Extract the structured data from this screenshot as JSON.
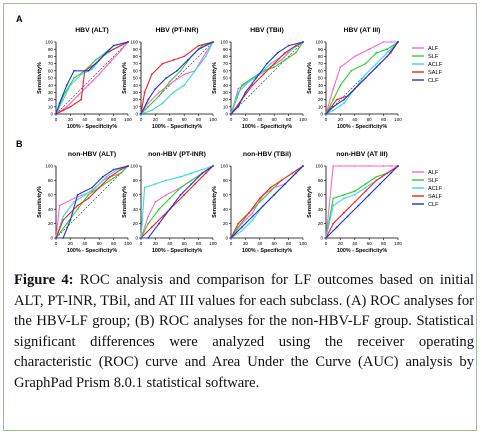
{
  "figure": {
    "panel_labels": [
      "A",
      "B"
    ],
    "legend_entries": [
      "ALF",
      "SLF",
      "ACLF",
      "SALF",
      "CLF"
    ],
    "colors": {
      "ALF": "#ff66cc",
      "SLF": "#33cc33",
      "ACLF": "#33dddd",
      "SALF": "#ee2222",
      "CLF": "#2233dd"
    }
  },
  "chart_data": [
    {
      "type": "line",
      "title": "HBV (ALT)",
      "xlabel": "100% - Specificity%",
      "ylabel": "Sensitivity%",
      "xlim": [
        0,
        100
      ],
      "ylim": [
        0,
        100
      ],
      "xticks": [
        "0",
        "20",
        "40",
        "60",
        "80",
        "100"
      ],
      "yticks": [
        "0",
        "10",
        "20",
        "30",
        "40",
        "50",
        "60",
        "70",
        "80",
        "90",
        "100"
      ],
      "series": [
        {
          "name": "ALF",
          "x": [
            0,
            15,
            30,
            45,
            60,
            75,
            90,
            100
          ],
          "y": [
            0,
            10,
            25,
            40,
            55,
            72,
            88,
            100
          ]
        },
        {
          "name": "SLF",
          "x": [
            0,
            10,
            25,
            40,
            55,
            65,
            80,
            100
          ],
          "y": [
            0,
            25,
            50,
            60,
            75,
            82,
            95,
            100
          ]
        },
        {
          "name": "ACLF",
          "x": [
            0,
            10,
            20,
            35,
            50,
            65,
            80,
            100
          ],
          "y": [
            0,
            20,
            40,
            55,
            62,
            80,
            90,
            100
          ]
        },
        {
          "name": "SALF",
          "x": [
            0,
            10,
            20,
            35,
            40,
            55,
            70,
            100
          ],
          "y": [
            0,
            5,
            10,
            20,
            60,
            70,
            85,
            100
          ]
        },
        {
          "name": "CLF",
          "x": [
            0,
            5,
            15,
            25,
            45,
            60,
            80,
            100
          ],
          "y": [
            0,
            15,
            40,
            60,
            60,
            75,
            95,
            100
          ]
        }
      ]
    },
    {
      "type": "line",
      "title": "HBV (PT-INR)",
      "xlabel": "100% - Specificity%",
      "ylabel": "Sensitivity%",
      "xlim": [
        0,
        100
      ],
      "ylim": [
        0,
        100
      ],
      "xticks": [
        "0",
        "20",
        "40",
        "60",
        "80",
        "100"
      ],
      "yticks": [
        "0",
        "10",
        "20",
        "30",
        "40",
        "50",
        "60",
        "70",
        "80",
        "90",
        "100"
      ],
      "series": [
        {
          "name": "ALF",
          "x": [
            0,
            10,
            25,
            45,
            60,
            75,
            90,
            100
          ],
          "y": [
            0,
            15,
            30,
            45,
            55,
            60,
            85,
            100
          ]
        },
        {
          "name": "SLF",
          "x": [
            0,
            10,
            25,
            40,
            55,
            70,
            85,
            100
          ],
          "y": [
            0,
            10,
            25,
            45,
            60,
            80,
            95,
            100
          ]
        },
        {
          "name": "ACLF",
          "x": [
            0,
            15,
            30,
            45,
            60,
            75,
            90,
            100
          ],
          "y": [
            0,
            5,
            15,
            30,
            40,
            60,
            80,
            100
          ]
        },
        {
          "name": "SALF",
          "x": [
            0,
            5,
            15,
            30,
            45,
            60,
            80,
            100
          ],
          "y": [
            0,
            30,
            55,
            70,
            75,
            80,
            95,
            100
          ]
        },
        {
          "name": "CLF",
          "x": [
            0,
            10,
            20,
            35,
            50,
            65,
            80,
            100
          ],
          "y": [
            0,
            20,
            35,
            50,
            60,
            75,
            90,
            100
          ]
        }
      ]
    },
    {
      "type": "line",
      "title": "HBV (TBil)",
      "xlabel": "100% - Specificity%",
      "ylabel": "Sensitivity%",
      "xlim": [
        0,
        100
      ],
      "ylim": [
        0,
        100
      ],
      "xticks": [
        "0",
        "20",
        "40",
        "60",
        "80",
        "100"
      ],
      "yticks": [
        "0",
        "10",
        "20",
        "30",
        "40",
        "50",
        "60",
        "70",
        "80",
        "90",
        "100"
      ],
      "series": [
        {
          "name": "ALF",
          "x": [
            0,
            10,
            25,
            40,
            55,
            70,
            85,
            100
          ],
          "y": [
            0,
            35,
            45,
            55,
            65,
            75,
            90,
            100
          ]
        },
        {
          "name": "SLF",
          "x": [
            0,
            15,
            30,
            45,
            60,
            75,
            90,
            100
          ],
          "y": [
            0,
            40,
            50,
            60,
            65,
            75,
            85,
            100
          ]
        },
        {
          "name": "ACLF",
          "x": [
            0,
            10,
            25,
            40,
            55,
            70,
            85,
            100
          ],
          "y": [
            0,
            30,
            45,
            55,
            70,
            80,
            90,
            100
          ]
        },
        {
          "name": "SALF",
          "x": [
            0,
            15,
            30,
            45,
            60,
            75,
            90,
            100
          ],
          "y": [
            0,
            20,
            40,
            55,
            70,
            85,
            95,
            100
          ]
        },
        {
          "name": "CLF",
          "x": [
            0,
            10,
            20,
            35,
            50,
            65,
            80,
            100
          ],
          "y": [
            0,
            10,
            30,
            50,
            70,
            85,
            95,
            100
          ]
        }
      ]
    },
    {
      "type": "line",
      "title": "HBV (AT III)",
      "xlabel": "100% - Specificity%",
      "ylabel": "Sensitivity%",
      "xlim": [
        0,
        100
      ],
      "ylim": [
        0,
        100
      ],
      "xticks": [
        "0",
        "20",
        "40",
        "60",
        "80",
        "100"
      ],
      "yticks": [
        "0",
        "10",
        "20",
        "30",
        "40",
        "50",
        "60",
        "70",
        "80",
        "90",
        "100"
      ],
      "series": [
        {
          "name": "ALF",
          "x": [
            0,
            10,
            20,
            40,
            60,
            80,
            90,
            100
          ],
          "y": [
            0,
            35,
            65,
            80,
            90,
            100,
            100,
            100
          ]
        },
        {
          "name": "SLF",
          "x": [
            0,
            10,
            20,
            35,
            55,
            70,
            85,
            100
          ],
          "y": [
            0,
            20,
            40,
            60,
            70,
            85,
            90,
            100
          ]
        },
        {
          "name": "ACLF",
          "x": [
            0,
            10,
            25,
            40,
            55,
            70,
            85,
            100
          ],
          "y": [
            0,
            5,
            15,
            35,
            55,
            70,
            85,
            100
          ]
        },
        {
          "name": "SALF",
          "x": [
            0,
            15,
            30,
            45,
            60,
            75,
            90,
            100
          ],
          "y": [
            0,
            20,
            25,
            40,
            55,
            70,
            85,
            100
          ]
        },
        {
          "name": "CLF",
          "x": [
            0,
            10,
            25,
            40,
            55,
            70,
            85,
            100
          ],
          "y": [
            0,
            10,
            20,
            35,
            50,
            65,
            80,
            100
          ]
        }
      ]
    },
    {
      "type": "line",
      "title": "non-HBV (ALT)",
      "xlabel": "100% - Specificity%",
      "ylabel": "Sensitivity%",
      "xlim": [
        0,
        100
      ],
      "ylim": [
        0,
        100
      ],
      "xticks": [
        "0",
        "20",
        "40",
        "60",
        "80",
        "100"
      ],
      "yticks": [
        "0",
        "20",
        "40",
        "60",
        "80",
        "100"
      ],
      "series": [
        {
          "name": "ALF",
          "x": [
            0,
            5,
            25,
            50,
            65,
            75,
            90,
            100
          ],
          "y": [
            0,
            45,
            55,
            65,
            80,
            85,
            90,
            100
          ]
        },
        {
          "name": "SLF",
          "x": [
            0,
            15,
            30,
            45,
            60,
            75,
            90,
            100
          ],
          "y": [
            0,
            20,
            40,
            60,
            70,
            80,
            90,
            100
          ]
        },
        {
          "name": "ACLF",
          "x": [
            0,
            10,
            25,
            40,
            55,
            70,
            85,
            100
          ],
          "y": [
            0,
            30,
            50,
            60,
            70,
            85,
            95,
            100
          ]
        },
        {
          "name": "SALF",
          "x": [
            0,
            10,
            30,
            45,
            60,
            75,
            90,
            100
          ],
          "y": [
            0,
            25,
            45,
            55,
            70,
            85,
            95,
            100
          ]
        },
        {
          "name": "CLF",
          "x": [
            0,
            10,
            20,
            30,
            50,
            65,
            80,
            100
          ],
          "y": [
            0,
            0,
            25,
            60,
            70,
            85,
            95,
            100
          ]
        }
      ]
    },
    {
      "type": "line",
      "title": "non-HBV (PT-INR)",
      "xlabel": "100% - Specificity%",
      "ylabel": "Sensitivity%",
      "xlim": [
        0,
        100
      ],
      "ylim": [
        0,
        100
      ],
      "xticks": [
        "0",
        "20",
        "40",
        "60",
        "80",
        "100"
      ],
      "yticks": [
        "0",
        "20",
        "40",
        "60",
        "80",
        "100"
      ],
      "series": [
        {
          "name": "ALF",
          "x": [
            0,
            10,
            20,
            35,
            55,
            70,
            85,
            100
          ],
          "y": [
            0,
            30,
            50,
            60,
            70,
            80,
            90,
            100
          ]
        },
        {
          "name": "SLF",
          "x": [
            0,
            10,
            25,
            40,
            55,
            70,
            85,
            100
          ],
          "y": [
            0,
            20,
            40,
            55,
            70,
            80,
            90,
            100
          ]
        },
        {
          "name": "ACLF",
          "x": [
            0,
            5,
            20,
            35,
            55,
            70,
            85,
            100
          ],
          "y": [
            0,
            70,
            75,
            80,
            85,
            90,
            95,
            100
          ]
        },
        {
          "name": "SALF",
          "x": [
            0,
            15,
            30,
            45,
            60,
            75,
            90,
            100
          ],
          "y": [
            0,
            15,
            30,
            45,
            60,
            75,
            90,
            100
          ]
        },
        {
          "name": "CLF",
          "x": [
            0,
            10,
            25,
            40,
            55,
            70,
            85,
            100
          ],
          "y": [
            0,
            0,
            20,
            40,
            60,
            75,
            90,
            100
          ]
        }
      ]
    },
    {
      "type": "line",
      "title": "non-HBV (TBil)",
      "xlabel": "100% - Specificity%",
      "ylabel": "Sensitivity%",
      "xlim": [
        0,
        100
      ],
      "ylim": [
        0,
        100
      ],
      "xticks": [
        "0",
        "20",
        "40",
        "60",
        "80",
        "100"
      ],
      "yticks": [
        "0",
        "20",
        "40",
        "60",
        "80",
        "100"
      ],
      "series": [
        {
          "name": "ALF",
          "x": [
            0,
            15,
            30,
            45,
            60,
            75,
            90,
            100
          ],
          "y": [
            0,
            20,
            35,
            60,
            70,
            75,
            90,
            100
          ]
        },
        {
          "name": "SLF",
          "x": [
            0,
            10,
            25,
            40,
            55,
            70,
            85,
            100
          ],
          "y": [
            0,
            15,
            35,
            50,
            65,
            80,
            90,
            100
          ]
        },
        {
          "name": "ACLF",
          "x": [
            0,
            15,
            30,
            45,
            60,
            75,
            90,
            100
          ],
          "y": [
            0,
            10,
            25,
            45,
            60,
            75,
            90,
            100
          ]
        },
        {
          "name": "SALF",
          "x": [
            0,
            10,
            25,
            40,
            55,
            70,
            85,
            100
          ],
          "y": [
            0,
            20,
            35,
            55,
            70,
            80,
            90,
            100
          ]
        },
        {
          "name": "CLF",
          "x": [
            0,
            15,
            30,
            45,
            60,
            75,
            90,
            100
          ],
          "y": [
            0,
            15,
            30,
            45,
            60,
            75,
            90,
            100
          ]
        }
      ]
    },
    {
      "type": "line",
      "title": "non-HBV (AT III)",
      "xlabel": "100% - Specificity%",
      "ylabel": "Sensitivity%",
      "xlim": [
        0,
        100
      ],
      "ylim": [
        0,
        100
      ],
      "xticks": [
        "0",
        "20",
        "40",
        "60",
        "80",
        "100"
      ],
      "yticks": [
        "0",
        "20",
        "40",
        "60",
        "80",
        "100"
      ],
      "series": [
        {
          "name": "ALF",
          "x": [
            0,
            10,
            20,
            40,
            60,
            80,
            90,
            100
          ],
          "y": [
            0,
            100,
            100,
            100,
            100,
            100,
            100,
            100
          ]
        },
        {
          "name": "SLF",
          "x": [
            0,
            10,
            25,
            40,
            55,
            70,
            85,
            100
          ],
          "y": [
            0,
            55,
            60,
            65,
            75,
            85,
            90,
            100
          ]
        },
        {
          "name": "ACLF",
          "x": [
            0,
            10,
            25,
            40,
            55,
            70,
            85,
            100
          ],
          "y": [
            0,
            45,
            55,
            60,
            70,
            80,
            90,
            100
          ]
        },
        {
          "name": "SALF",
          "x": [
            0,
            10,
            25,
            40,
            55,
            70,
            85,
            100
          ],
          "y": [
            0,
            20,
            35,
            50,
            65,
            80,
            90,
            100
          ]
        },
        {
          "name": "CLF",
          "x": [
            0,
            15,
            30,
            45,
            60,
            75,
            90,
            100
          ],
          "y": [
            0,
            15,
            30,
            45,
            60,
            75,
            90,
            100
          ]
        }
      ]
    }
  ],
  "caption": {
    "lead": "Figure 4:",
    "text": "ROC analysis and comparison for LF outcomes based on initial ALT, PT-INR, TBil, and AT III values for each subclass. (A) ROC analyses for the HBV-LF group; (B) ROC analyses for the non-HBV-LF group. Statistical significant differences were analyzed using the receiver operating characteristic (ROC) curve and Area Under the Curve (AUC) analysis by GraphPad Prism 8.0.1 statistical software."
  }
}
